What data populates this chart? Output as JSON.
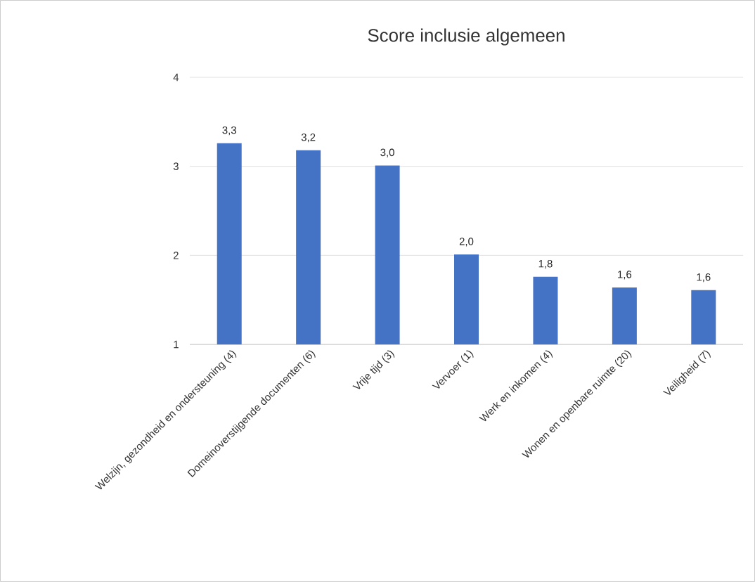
{
  "chart_data": {
    "type": "bar",
    "title": "Score inclusie algemeen",
    "categories": [
      "Welzijn, gezondheid en ondersteuning (4)",
      "Domeinoverstijgende documenten (6)",
      "Vrije tijd (3)",
      "Vervoer (1)",
      "Werk en inkomen (4)",
      "Wonen en openbare ruimte (20)",
      "Veiligheid (7)"
    ],
    "values": [
      3.26,
      3.18,
      3.01,
      2.01,
      1.76,
      1.64,
      1.61
    ],
    "value_labels": [
      "3,3",
      "3,2",
      "3,0",
      "2,0",
      "1,8",
      "1,6",
      "1,6"
    ],
    "color": "#4472c4",
    "ylim": [
      1,
      4
    ],
    "yticks": [
      1,
      2,
      3,
      4
    ],
    "grid": "y"
  }
}
